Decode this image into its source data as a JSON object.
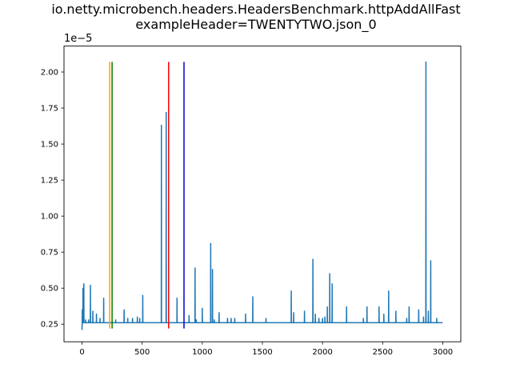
{
  "chart_data": {
    "type": "line",
    "title_lines": [
      "io.netty.microbench.headers.HeadersBenchmark.httpAddAllFast",
      "exampleHeader=TWENTYTWO.json_0"
    ],
    "xlabel": "",
    "ylabel": "",
    "y_offset_label": "1e−5",
    "xlim": [
      -150,
      3150
    ],
    "ylim": [
      1.28e-06,
      2.18e-05
    ],
    "xticks": [
      0,
      500,
      1000,
      1500,
      2000,
      2500,
      3000
    ],
    "xtick_labels": [
      "0",
      "500",
      "1000",
      "1500",
      "2000",
      "2500",
      "3000"
    ],
    "yticks": [
      2.5e-06,
      5e-06,
      7.5e-06,
      1e-05,
      1.25e-05,
      1.5e-05,
      1.75e-05,
      2e-05
    ],
    "ytick_labels": [
      "0.25",
      "0.50",
      "0.75",
      "1.00",
      "1.25",
      "1.50",
      "1.75",
      "2.00"
    ],
    "grid": false,
    "legend": "none",
    "baseline": 2.6e-06,
    "n_points": 3000,
    "series": [
      {
        "color": "#1f77b4",
        "spikes": [
          [
            0,
            2.1e-06
          ],
          [
            2,
            3.5e-06
          ],
          [
            8,
            5e-06
          ],
          [
            15,
            5.3e-06
          ],
          [
            30,
            2.8e-06
          ],
          [
            55,
            2.8e-06
          ],
          [
            70,
            5.2e-06
          ],
          [
            90,
            3.4e-06
          ],
          [
            120,
            3.2e-06
          ],
          [
            150,
            2.9e-06
          ],
          [
            180,
            4.3e-06
          ],
          [
            250,
            2.7e-06
          ],
          [
            280,
            2.8e-06
          ],
          [
            350,
            3.5e-06
          ],
          [
            380,
            2.9e-06
          ],
          [
            420,
            2.9e-06
          ],
          [
            460,
            3e-06
          ],
          [
            480,
            2.9e-06
          ],
          [
            505,
            4.5e-06
          ],
          [
            660,
            1.63e-05
          ],
          [
            700,
            1.72e-05
          ],
          [
            790,
            4.3e-06
          ],
          [
            890,
            3.1e-06
          ],
          [
            940,
            6.4e-06
          ],
          [
            950,
            2.8e-06
          ],
          [
            1000,
            3.6e-06
          ],
          [
            1070,
            8.1e-06
          ],
          [
            1085,
            6.3e-06
          ],
          [
            1100,
            2.8e-06
          ],
          [
            1140,
            3.3e-06
          ],
          [
            1210,
            2.9e-06
          ],
          [
            1240,
            2.9e-06
          ],
          [
            1270,
            2.9e-06
          ],
          [
            1360,
            3.2e-06
          ],
          [
            1420,
            4.4e-06
          ],
          [
            1530,
            2.9e-06
          ],
          [
            1740,
            4.8e-06
          ],
          [
            1760,
            3.3e-06
          ],
          [
            1850,
            3.4e-06
          ],
          [
            1920,
            7e-06
          ],
          [
            1940,
            3.2e-06
          ],
          [
            1970,
            2.9e-06
          ],
          [
            2000,
            2.9e-06
          ],
          [
            2020,
            3e-06
          ],
          [
            2040,
            3.7e-06
          ],
          [
            2060,
            6e-06
          ],
          [
            2080,
            5.3e-06
          ],
          [
            2200,
            3.7e-06
          ],
          [
            2340,
            2.9e-06
          ],
          [
            2370,
            3.7e-06
          ],
          [
            2470,
            3.7e-06
          ],
          [
            2510,
            3.2e-06
          ],
          [
            2550,
            4.8e-06
          ],
          [
            2610,
            3.4e-06
          ],
          [
            2700,
            2.9e-06
          ],
          [
            2720,
            3.7e-06
          ],
          [
            2800,
            3.5e-06
          ],
          [
            2840,
            3e-06
          ],
          [
            2860,
            2.07e-05
          ],
          [
            2880,
            3.4e-06
          ],
          [
            2900,
            6.9e-06
          ],
          [
            2950,
            2.9e-06
          ]
        ]
      }
    ],
    "vlines": [
      {
        "x": 230,
        "color": "#ffa500"
      },
      {
        "x": 250,
        "color": "#008000"
      },
      {
        "x": 720,
        "color": "#ff0000"
      },
      {
        "x": 848,
        "color": "#0000cd"
      }
    ],
    "vline_ymin": 2.2e-06,
    "vline_ymax": 2.07e-05
  },
  "colors": {
    "axis": "#000000",
    "background": "#ffffff"
  }
}
